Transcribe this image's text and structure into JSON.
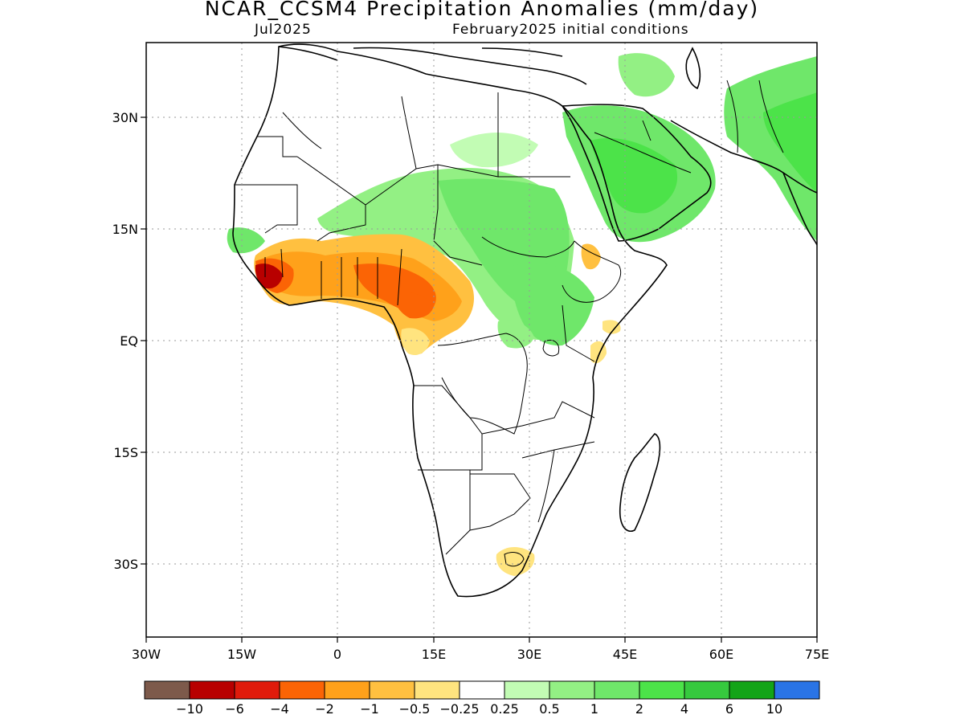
{
  "header": {
    "title": "NCAR_CCSM4 Precipitation Anomalies (mm/day)",
    "target_month": "Jul2025",
    "init_conditions": "February2025 initial conditions"
  },
  "map": {
    "region": "Africa and Middle East",
    "lon_range": [
      -30,
      75
    ],
    "lat_range": [
      -40,
      40
    ],
    "lon_ticks": [
      "30W",
      "15W",
      "0",
      "15E",
      "30E",
      "45E",
      "60E",
      "75E"
    ],
    "lat_ticks": [
      "30N",
      "15N",
      "EQ",
      "15S",
      "30S"
    ],
    "grid": "dotted",
    "anomaly_regions": [
      {
        "area": "West Africa coast (Guinea/Sierra Leone/Liberia)",
        "sign": "dry",
        "magnitude": "-4 to -10"
      },
      {
        "area": "Gulf of Guinea coast / southern Nigeria / Cameroon",
        "sign": "dry",
        "magnitude": "-2 to -4"
      },
      {
        "area": "Sahel belt (Mali to Chad)",
        "sign": "wet",
        "magnitude": "0.5 to 1"
      },
      {
        "area": "Sudan / South Sudan / Ethiopia",
        "sign": "wet",
        "magnitude": "1 to 2"
      },
      {
        "area": "Arabian Peninsula (Saudi Arabia/Yemen)",
        "sign": "wet",
        "magnitude": "1 to 4"
      },
      {
        "area": "Pakistan / NW India",
        "sign": "wet",
        "magnitude": "1 to 4"
      },
      {
        "area": "Central Ethiopian highlands",
        "sign": "dry",
        "magnitude": "-0.5 to -2"
      },
      {
        "area": "Lesotho / eastern South Africa",
        "sign": "dry",
        "magnitude": "-0.25 to -1"
      },
      {
        "area": "Coastal Kenya / Somalia",
        "sign": "dry",
        "magnitude": "-0.25 to -0.5"
      }
    ]
  },
  "colorbar": {
    "colors": [
      "#7d5a4b",
      "#b80000",
      "#e01b0b",
      "#fb6405",
      "#ffa11a",
      "#ffc040",
      "#ffe47f",
      "#ffffff",
      "#c2fcb4",
      "#93f084",
      "#6fe76a",
      "#4ce349",
      "#36c93e",
      "#13a418",
      "#2a74e6"
    ],
    "labels": [
      "-10",
      "-6",
      "-4",
      "-2",
      "-1",
      "-0.5",
      "-0.25",
      "0.25",
      "0.5",
      "1",
      "2",
      "4",
      "6",
      "10"
    ]
  }
}
